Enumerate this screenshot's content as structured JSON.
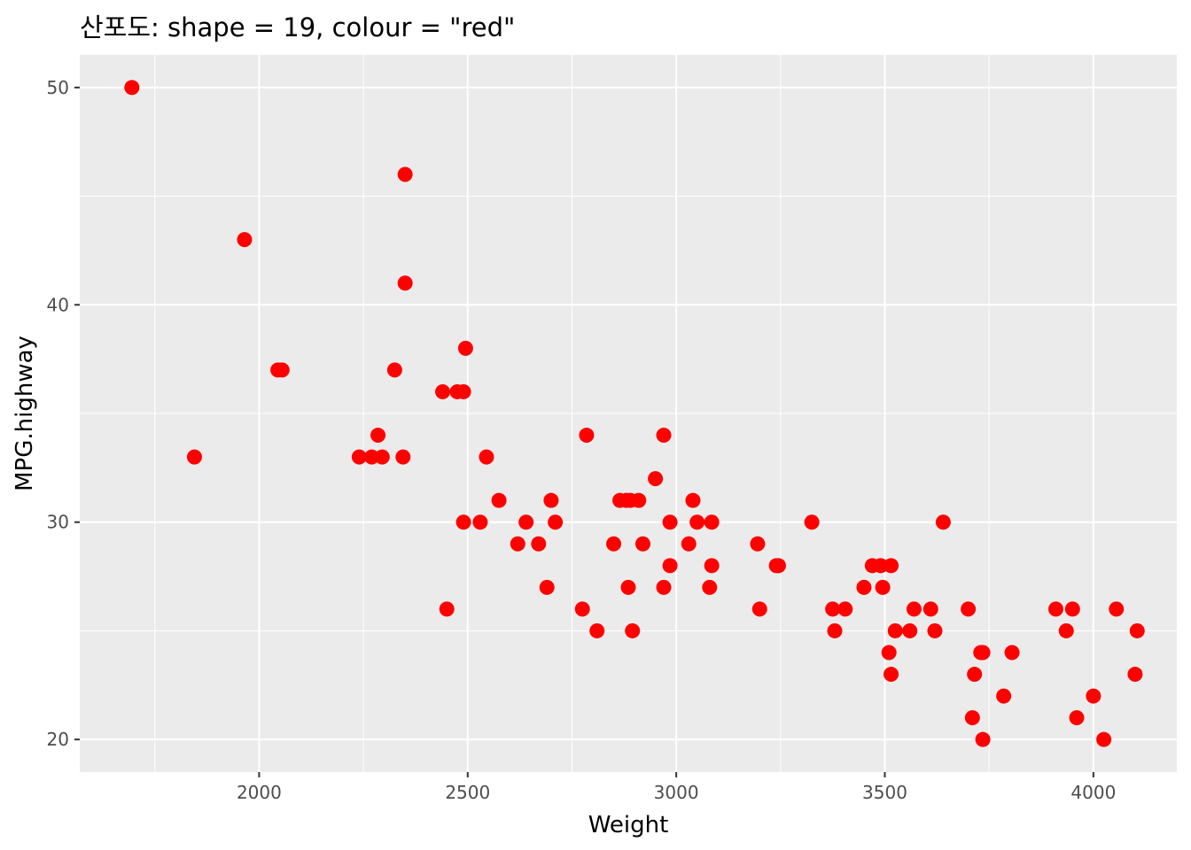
{
  "chart_data": {
    "type": "scatter",
    "title": "산포도: shape = 19, colour = \"red\"",
    "xlabel": "Weight",
    "ylabel": "MPG.highway",
    "xlim": [
      1570,
      4200
    ],
    "ylim": [
      18.5,
      51.5
    ],
    "x_ticks": [
      2000,
      2500,
      3000,
      3500,
      4000
    ],
    "y_ticks": [
      20,
      30,
      40,
      50
    ],
    "x_tick_labels": [
      "2000",
      "2500",
      "3000",
      "3500",
      "4000"
    ],
    "y_tick_labels": [
      "20",
      "30",
      "40",
      "50"
    ],
    "grid": true,
    "legend": "none",
    "point_color": "#ff0000",
    "panel_background": "#ebebeb",
    "grid_color": "#ffffff",
    "points": [
      [
        1695,
        50
      ],
      [
        1845,
        33
      ],
      [
        1965,
        43
      ],
      [
        2045,
        37
      ],
      [
        2055,
        37
      ],
      [
        2240,
        33
      ],
      [
        2270,
        33
      ],
      [
        2285,
        34
      ],
      [
        2295,
        33
      ],
      [
        2325,
        37
      ],
      [
        2345,
        33
      ],
      [
        2350,
        46
      ],
      [
        2350,
        41
      ],
      [
        2440,
        36
      ],
      [
        2450,
        26
      ],
      [
        2475,
        36
      ],
      [
        2490,
        30
      ],
      [
        2490,
        36
      ],
      [
        2495,
        38
      ],
      [
        2530,
        30
      ],
      [
        2545,
        33
      ],
      [
        2575,
        31
      ],
      [
        2620,
        29
      ],
      [
        2640,
        30
      ],
      [
        2670,
        29
      ],
      [
        2690,
        27
      ],
      [
        2700,
        31
      ],
      [
        2710,
        30
      ],
      [
        2775,
        26
      ],
      [
        2785,
        34
      ],
      [
        2810,
        25
      ],
      [
        2850,
        29
      ],
      [
        2865,
        31
      ],
      [
        2880,
        31
      ],
      [
        2885,
        27
      ],
      [
        2890,
        31
      ],
      [
        2895,
        25
      ],
      [
        2910,
        31
      ],
      [
        2920,
        29
      ],
      [
        2950,
        32
      ],
      [
        2970,
        34
      ],
      [
        2970,
        27
      ],
      [
        2985,
        30
      ],
      [
        2985,
        28
      ],
      [
        3030,
        29
      ],
      [
        3040,
        31
      ],
      [
        3050,
        30
      ],
      [
        3080,
        27
      ],
      [
        3085,
        28
      ],
      [
        3085,
        30
      ],
      [
        3195,
        29
      ],
      [
        3200,
        26
      ],
      [
        3240,
        28
      ],
      [
        3245,
        28
      ],
      [
        3325,
        30
      ],
      [
        3375,
        26
      ],
      [
        3380,
        25
      ],
      [
        3405,
        26
      ],
      [
        3450,
        27
      ],
      [
        3470,
        28
      ],
      [
        3490,
        28
      ],
      [
        3495,
        27
      ],
      [
        3510,
        24
      ],
      [
        3515,
        23
      ],
      [
        3515,
        28
      ],
      [
        3525,
        25
      ],
      [
        3560,
        25
      ],
      [
        3570,
        26
      ],
      [
        3610,
        26
      ],
      [
        3620,
        25
      ],
      [
        3640,
        30
      ],
      [
        3700,
        26
      ],
      [
        3710,
        21
      ],
      [
        3715,
        23
      ],
      [
        3730,
        24
      ],
      [
        3735,
        20
      ],
      [
        3735,
        24
      ],
      [
        3785,
        22
      ],
      [
        3805,
        24
      ],
      [
        3910,
        26
      ],
      [
        3935,
        25
      ],
      [
        3950,
        26
      ],
      [
        3960,
        21
      ],
      [
        4000,
        22
      ],
      [
        4025,
        20
      ],
      [
        4055,
        26
      ],
      [
        4100,
        23
      ],
      [
        4105,
        25
      ]
    ]
  }
}
